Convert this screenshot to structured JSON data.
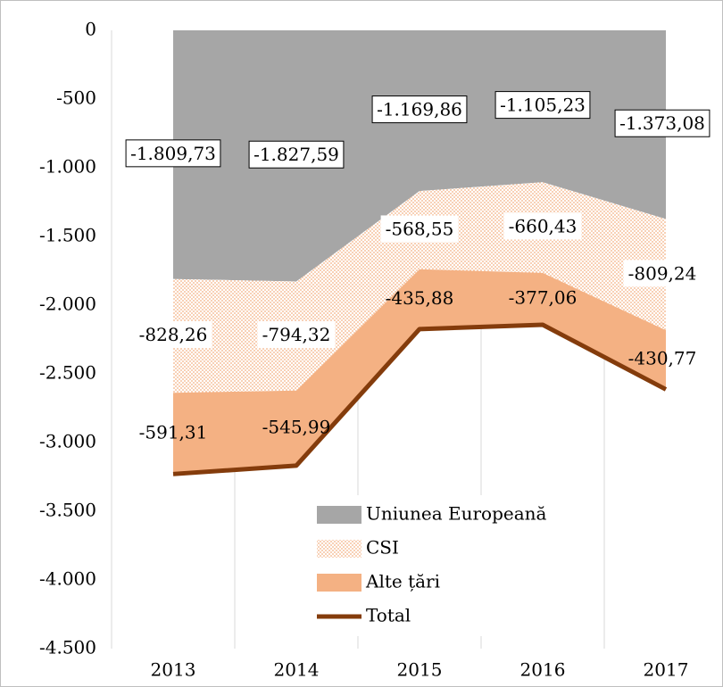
{
  "chart_data": {
    "type": "area",
    "stacked": true,
    "categories": [
      "2013",
      "2014",
      "2015",
      "2016",
      "2017"
    ],
    "series": [
      {
        "name": "Uniunea Europeană",
        "color": "#a6a6a6",
        "values": [
          -1809.73,
          -1827.59,
          -1169.86,
          -1105.23,
          -1373.08
        ],
        "value_labels": [
          "-1.809,73",
          "-1.827,59",
          "-1.169,86",
          "-1.105,23",
          "-1.373,08"
        ]
      },
      {
        "name": "CSI",
        "color": "#f4b183",
        "pattern": "dots",
        "values": [
          -828.26,
          -794.32,
          -568.55,
          -660.43,
          -809.24
        ],
        "value_labels": [
          "-828,26",
          "-794,32",
          "-568,55",
          "-660,43",
          "-809,24"
        ]
      },
      {
        "name": "Alte țări",
        "color": "#f4b183",
        "values": [
          -591.31,
          -545.99,
          -435.88,
          -377.06,
          -430.77
        ],
        "value_labels": [
          "-591,31",
          "-545,99",
          "-435,88",
          "-377,06",
          "-430,77"
        ]
      },
      {
        "name": "Total",
        "type": "line",
        "color": "#843c0c",
        "values": [
          -3229.3,
          -3167.9,
          -2174.29,
          -2142.72,
          -2613.09
        ]
      }
    ],
    "ylim": [
      -4500,
      0
    ],
    "yticks": [
      0,
      -500,
      {
        "value": -1000,
        "label": "-1.000"
      },
      {
        "value": -1500,
        "label": "-1.500"
      },
      {
        "value": -2000,
        "label": "-2.000"
      },
      {
        "value": -2500,
        "label": "-2.500"
      },
      {
        "value": -3000,
        "label": "-3.000"
      },
      {
        "value": -3500,
        "label": "-3.500"
      },
      {
        "value": -4000,
        "label": "-4.000"
      },
      {
        "value": -4500,
        "label": "-4.500"
      }
    ],
    "grid": "vertical"
  }
}
